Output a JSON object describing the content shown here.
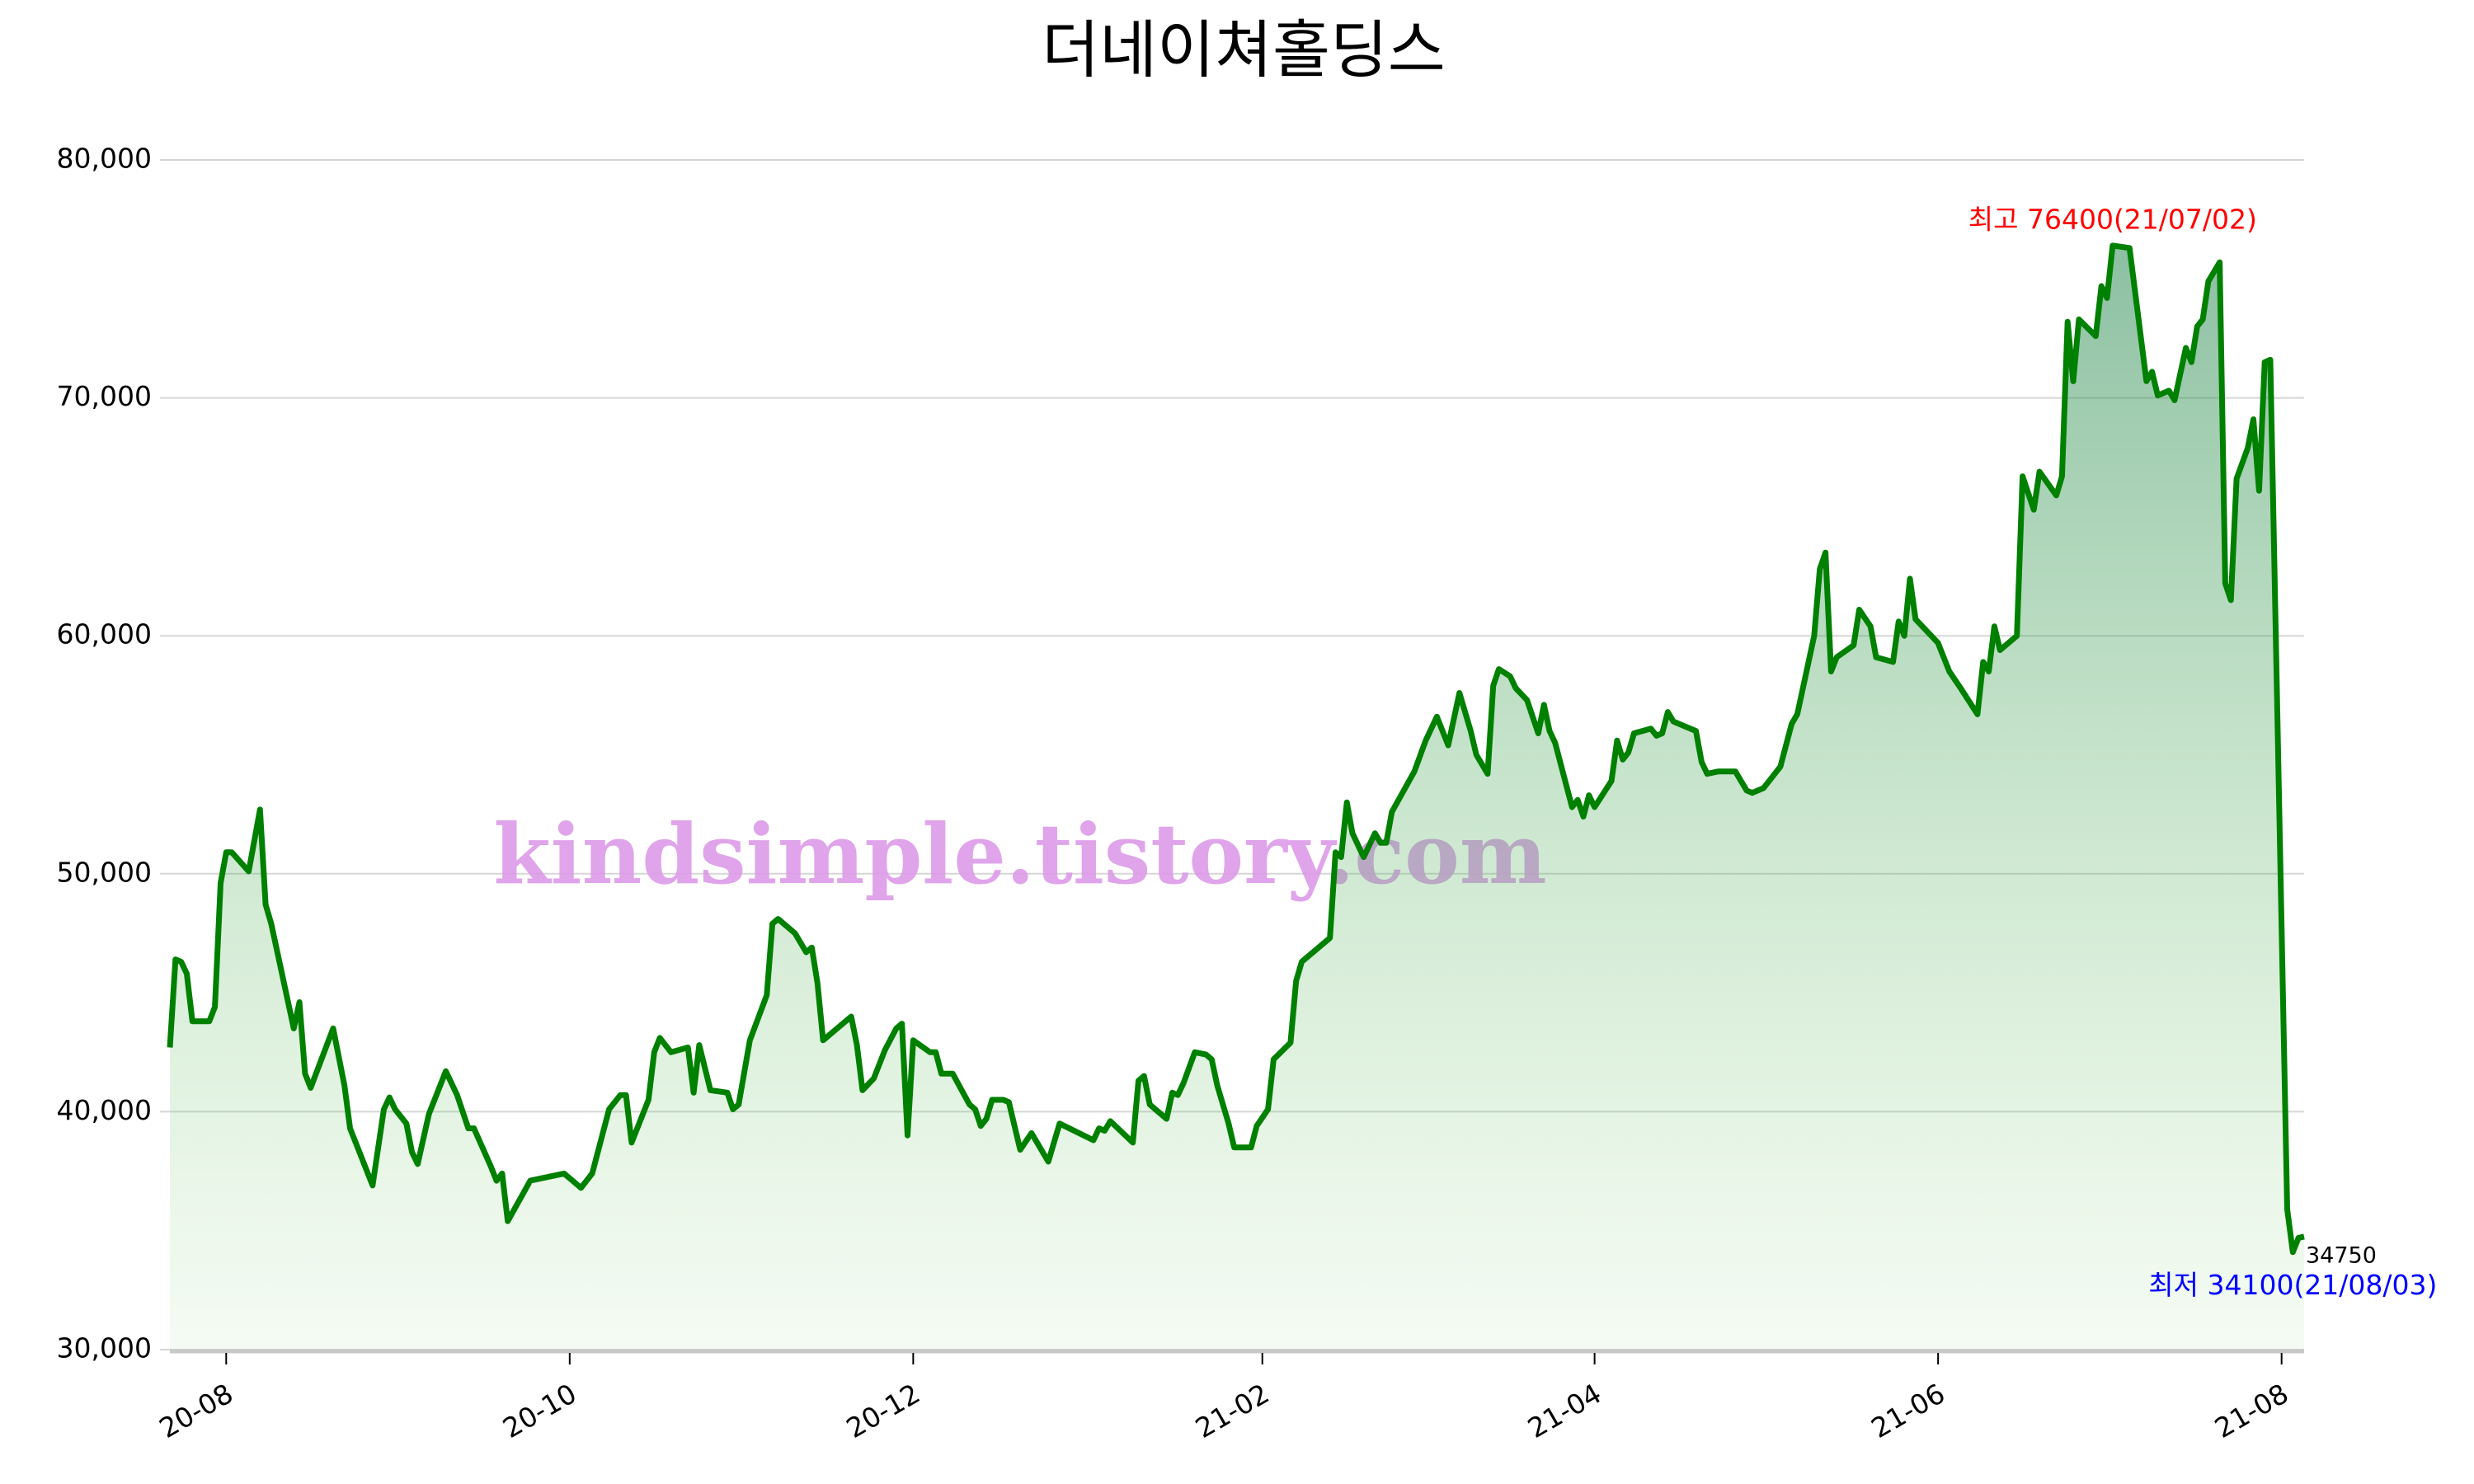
{
  "chart_data": {
    "type": "line",
    "title": "더네이쳐홀딩스",
    "watermark": "kindsimple.tistory.com",
    "x": [
      "2020-07-22",
      "2020-07-23",
      "2020-07-24",
      "2020-07-25",
      "2020-07-26",
      "2020-07-29",
      "2020-07-30",
      "2020-07-31",
      "2020-08-01",
      "2020-08-02",
      "2020-08-05",
      "2020-08-07",
      "2020-08-08",
      "2020-08-09",
      "2020-08-13",
      "2020-08-14",
      "2020-08-15",
      "2020-08-16",
      "2020-08-20",
      "2020-08-22",
      "2020-08-23",
      "2020-08-27",
      "2020-08-29",
      "2020-08-30",
      "2020-08-31",
      "2020-09-02",
      "2020-09-03",
      "2020-09-04",
      "2020-09-06",
      "2020-09-09",
      "2020-09-11",
      "2020-09-13",
      "2020-09-14",
      "2020-09-17",
      "2020-09-18",
      "2020-09-19",
      "2020-09-20",
      "2020-09-24",
      "2020-09-30",
      "2020-10-02",
      "2020-10-03",
      "2020-10-05",
      "2020-10-08",
      "2020-10-10",
      "2020-10-11",
      "2020-10-12",
      "2020-10-15",
      "2020-10-16",
      "2020-10-17",
      "2020-10-19",
      "2020-10-22",
      "2020-10-23",
      "2020-10-24",
      "2020-10-26",
      "2020-10-29",
      "2020-10-30",
      "2020-10-31",
      "2020-11-02",
      "2020-11-05",
      "2020-11-06",
      "2020-11-07",
      "2020-11-10",
      "2020-11-12",
      "2020-11-13",
      "2020-11-14",
      "2020-11-15",
      "2020-11-20",
      "2020-11-21",
      "2020-11-22",
      "2020-11-24",
      "2020-11-26",
      "2020-11-28",
      "2020-11-29",
      "2020-11-30",
      "2020-12-01",
      "2020-12-04",
      "2020-12-05",
      "2020-12-06",
      "2020-12-08",
      "2020-12-11",
      "2020-12-12",
      "2020-12-13",
      "2020-12-14",
      "2020-12-15",
      "2020-12-17",
      "2020-12-18",
      "2020-12-20",
      "2020-12-22",
      "2020-12-25",
      "2020-12-27",
      "2021-01-02",
      "2021-01-03",
      "2021-01-04",
      "2021-01-05",
      "2021-01-09",
      "2021-01-10",
      "2021-01-11",
      "2021-01-12",
      "2021-01-15",
      "2021-01-16",
      "2021-01-17",
      "2021-01-18",
      "2021-01-20",
      "2021-01-22",
      "2021-01-23",
      "2021-01-24",
      "2021-01-26",
      "2021-01-27",
      "2021-01-30",
      "2021-01-31",
      "2021-02-02",
      "2021-02-03",
      "2021-02-06",
      "2021-02-07",
      "2021-02-08",
      "2021-02-13",
      "2021-02-14",
      "2021-02-15",
      "2021-02-16",
      "2021-02-17",
      "2021-02-19",
      "2021-02-21",
      "2021-02-22",
      "2021-02-23",
      "2021-02-24",
      "2021-02-28",
      "2021-03-02",
      "2021-03-04",
      "2021-03-06",
      "2021-03-08",
      "2021-03-10",
      "2021-03-11",
      "2021-03-13",
      "2021-03-14",
      "2021-03-15",
      "2021-03-17",
      "2021-03-18",
      "2021-03-20",
      "2021-03-22",
      "2021-03-23",
      "2021-03-24",
      "2021-03-25",
      "2021-03-28",
      "2021-03-29",
      "2021-03-30",
      "2021-03-31",
      "2021-04-01",
      "2021-04-04",
      "2021-04-05",
      "2021-04-06",
      "2021-04-07",
      "2021-04-08",
      "2021-04-11",
      "2021-04-12",
      "2021-04-13",
      "2021-04-14",
      "2021-04-15",
      "2021-04-19",
      "2021-04-20",
      "2021-04-21",
      "2021-04-23",
      "2021-04-26",
      "2021-04-28",
      "2021-04-29",
      "2021-05-01",
      "2021-05-04",
      "2021-05-06",
      "2021-05-07",
      "2021-05-10",
      "2021-05-11",
      "2021-05-12",
      "2021-05-13",
      "2021-05-14",
      "2021-05-17",
      "2021-05-18",
      "2021-05-20",
      "2021-05-21",
      "2021-05-24",
      "2021-05-25",
      "2021-05-26",
      "2021-05-27",
      "2021-05-28",
      "2021-06-01",
      "2021-06-03",
      "2021-06-05",
      "2021-06-08",
      "2021-06-09",
      "2021-06-10",
      "2021-06-11",
      "2021-06-12",
      "2021-06-15",
      "2021-06-16",
      "2021-06-17",
      "2021-06-18",
      "2021-06-19",
      "2021-06-22",
      "2021-06-23",
      "2021-06-24",
      "2021-06-25",
      "2021-06-26",
      "2021-06-29",
      "2021-06-30",
      "2021-07-01",
      "2021-07-02",
      "2021-07-05",
      "2021-07-08",
      "2021-07-09",
      "2021-07-10",
      "2021-07-12",
      "2021-07-13",
      "2021-07-15",
      "2021-07-16",
      "2021-07-17",
      "2021-07-18",
      "2021-07-19",
      "2021-07-21",
      "2021-07-22",
      "2021-07-23",
      "2021-07-24",
      "2021-07-26",
      "2021-07-27",
      "2021-07-28",
      "2021-07-29",
      "2021-07-30",
      "2021-08-02",
      "2021-08-03",
      "2021-08-04",
      "2021-08-05"
    ],
    "values": [
      42700,
      46400,
      46300,
      45800,
      43800,
      43800,
      44400,
      49600,
      50900,
      50900,
      50100,
      52700,
      48700,
      47900,
      43500,
      44600,
      41600,
      41000,
      43500,
      41100,
      39300,
      36900,
      40100,
      40600,
      40100,
      39500,
      38300,
      37800,
      39900,
      41700,
      40700,
      39300,
      39300,
      37700,
      37100,
      37400,
      35400,
      37100,
      37400,
      37000,
      36800,
      37400,
      40100,
      40700,
      40700,
      38700,
      40500,
      42500,
      43100,
      42500,
      42700,
      40800,
      42800,
      40900,
      40800,
      40100,
      40300,
      43000,
      44900,
      47900,
      48100,
      47500,
      46700,
      46900,
      45400,
      43000,
      44000,
      42800,
      40900,
      41400,
      42600,
      43500,
      43700,
      39000,
      43000,
      42500,
      42500,
      41600,
      41600,
      40300,
      40100,
      39400,
      39700,
      40500,
      40500,
      40400,
      38400,
      39100,
      37900,
      39500,
      38800,
      39300,
      39200,
      39600,
      38700,
      41300,
      41500,
      40300,
      39700,
      40800,
      40700,
      41200,
      42500,
      42400,
      42200,
      41100,
      39500,
      38500,
      38500,
      39400,
      40100,
      42200,
      42900,
      45500,
      46300,
      47300,
      50900,
      50700,
      53000,
      51700,
      50700,
      51700,
      51300,
      51300,
      52600,
      54300,
      55600,
      56600,
      55400,
      57600,
      56000,
      55000,
      54200,
      57900,
      58600,
      58300,
      57800,
      57300,
      55900,
      57100,
      56000,
      55500,
      52800,
      53100,
      52400,
      53300,
      52800,
      53900,
      55600,
      54800,
      55100,
      55900,
      56100,
      55800,
      55900,
      56800,
      56400,
      56000,
      54700,
      54200,
      54300,
      54300,
      53500,
      53400,
      53600,
      54500,
      56300,
      56700,
      60000,
      62800,
      63500,
      58500,
      59100,
      59600,
      61100,
      60400,
      59100,
      58900,
      60600,
      60000,
      62400,
      60700,
      59700,
      58500,
      57800,
      56700,
      58900,
      58500,
      60400,
      59400,
      60000,
      66700,
      66000,
      65300,
      66900,
      65900,
      66700,
      73200,
      70700,
      73300,
      72600,
      74700,
      74200,
      76400,
      76300,
      70700,
      71100,
      70100,
      70300,
      69900,
      72100,
      71500,
      73000,
      73300,
      74900,
      75700,
      62200,
      61500,
      66600,
      67900,
      69100,
      66100,
      71500,
      71600,
      35900,
      34100,
      34700,
      34750
    ],
    "color": "green",
    "xlim": [
      "2020-07-22",
      "2021-08-05"
    ],
    "xticks": [
      {
        "value": "2020-08-01",
        "label": "20-08"
      },
      {
        "value": "2020-10-01",
        "label": "20-10"
      },
      {
        "value": "2020-12-01",
        "label": "20-12"
      },
      {
        "value": "2021-02-01",
        "label": "21-02"
      },
      {
        "value": "2021-04-01",
        "label": "21-04"
      },
      {
        "value": "2021-06-01",
        "label": "21-06"
      },
      {
        "value": "2021-08-01",
        "label": "21-08"
      }
    ],
    "ylim": [
      30000,
      80000
    ],
    "yticks": [
      {
        "value": 30000,
        "label": "30,000"
      },
      {
        "value": 40000,
        "label": "40,000"
      },
      {
        "value": 50000,
        "label": "50,000"
      },
      {
        "value": 60000,
        "label": "60,000"
      },
      {
        "value": 70000,
        "label": "70,000"
      },
      {
        "value": 80000,
        "label": "80,000"
      }
    ],
    "grid": true,
    "annotations": [
      {
        "text": "최고 76400(21/07/02)",
        "color": "red",
        "x": "2021-07-02",
        "y": 76400
      },
      {
        "text": "최저 34100(21/08/03)",
        "color": "blue",
        "x": "2021-08-03",
        "y": 34100
      },
      {
        "text": "34750",
        "color": "black",
        "x": "2021-08-05",
        "y": 34750
      }
    ]
  }
}
